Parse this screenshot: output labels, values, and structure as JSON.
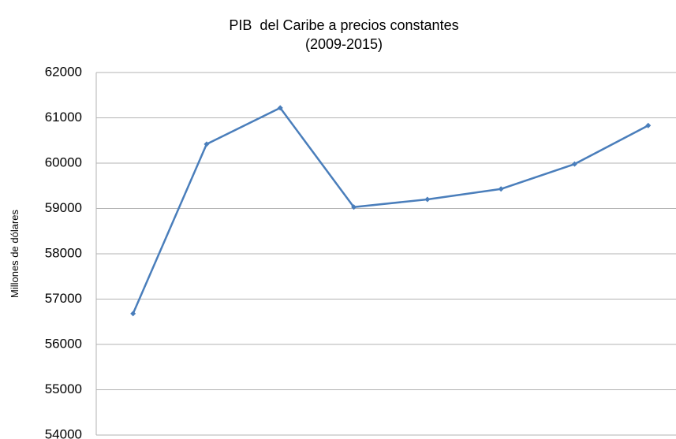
{
  "chart_data": {
    "type": "line",
    "title": "PIB  del Caribe a precios constantes",
    "subtitle": "(2009-2015)",
    "y_label": "Millones de dólares",
    "categories": [
      null,
      null,
      null,
      null,
      null,
      null,
      null,
      null
    ],
    "values": [
      56680,
      60420,
      61220,
      59030,
      59200,
      59430,
      59980,
      60830
    ],
    "color": "#4a7ebb",
    "ylim": [
      54000,
      62000
    ],
    "yticks": [
      54000,
      55000,
      56000,
      57000,
      58000,
      59000,
      60000,
      61000,
      62000
    ],
    "grid": true
  }
}
